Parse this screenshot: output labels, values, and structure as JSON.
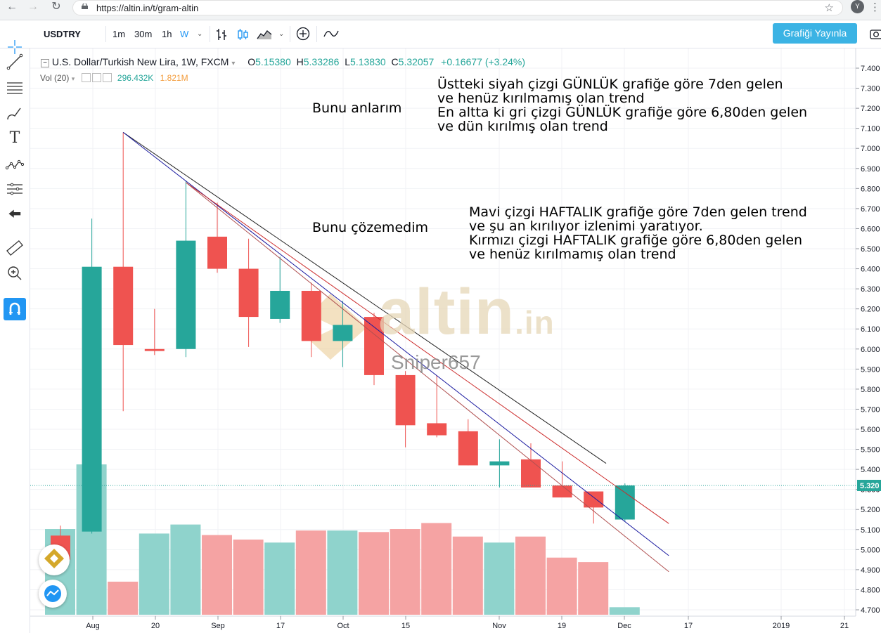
{
  "browser": {
    "url": "https://altin.in/t/gram-altin",
    "avatar_letter": "Y"
  },
  "toolbar": {
    "symbol": "USDTRY",
    "intervals": [
      "1m",
      "30m",
      "1h",
      "W"
    ],
    "active_interval": "W",
    "publish_label": "Grafiği Yayınla"
  },
  "legend": {
    "title": "U.S. Dollar/Turkish New Lira, 1W, FXCM",
    "open_label": "O",
    "open": "5.15380",
    "high_label": "H",
    "high": "5.33286",
    "low_label": "L",
    "low": "5.13830",
    "close_label": "C",
    "close": "5.32057",
    "change": "+0.16677 (+3.24%)"
  },
  "volume_legend": {
    "label": "Vol (20)",
    "value1": "296.432K",
    "value2": "1.821M"
  },
  "annotations": {
    "left_top": "Bunu anlarım",
    "left_mid": "Bunu çözemedim",
    "right_top": [
      "Üstteki siyah çizgi GÜNLÜK grafiğe göre 7den gelen",
      "ve henüz kırılmamış olan trend",
      "En altta ki gri çizgi GÜNLÜK grafiğe göre 6,80den gelen",
      "ve dün kırılmış olan trend"
    ],
    "right_mid": [
      "Mavi çizgi HAFTALIK grafiğe göre 7den gelen trend",
      "ve şu an kırılıyor izlenimi yaratıyor.",
      "Kırmızı çizgi HAFTALIK grafiğe göre 6,80den gelen",
      "ve henüz kırılmamış olan trend"
    ]
  },
  "watermark": {
    "brand": "altin",
    "tld": ".in",
    "author": "Sniper657"
  },
  "colors": {
    "up": "#26a69a",
    "down": "#ef5350",
    "accent": "#3bb3e4",
    "vol_up": "#8fd3cc",
    "vol_down": "#f5a3a3"
  },
  "chart_data": {
    "type": "candlestick",
    "price_axis": {
      "ticks": [
        "7.400",
        "7.300",
        "7.200",
        "7.100",
        "7.000",
        "6.900",
        "6.800",
        "6.700",
        "6.600",
        "6.500",
        "6.400",
        "6.300",
        "6.200",
        "6.100",
        "6.000",
        "5.900",
        "5.800",
        "5.700",
        "5.600",
        "5.500",
        "5.400",
        "5.300",
        "5.200",
        "5.100",
        "5.000",
        "4.900",
        "4.800",
        "4.700"
      ],
      "range": [
        4.67,
        7.46
      ],
      "last_price_label": "5.320"
    },
    "time_axis": {
      "labels": [
        "Aug",
        "20",
        "Sep",
        "17",
        "Oct",
        "15",
        "Nov",
        "19",
        "Dec",
        "17",
        "2019",
        "21"
      ]
    },
    "candles": [
      {
        "o": 5.07,
        "h": 5.12,
        "l": 4.94,
        "c": 4.95
      },
      {
        "o": 5.09,
        "h": 6.65,
        "l": 5.08,
        "c": 6.41
      },
      {
        "o": 6.41,
        "h": 7.08,
        "l": 5.69,
        "c": 6.02
      },
      {
        "o": 6.0,
        "h": 6.2,
        "l": 5.97,
        "c": 5.99
      },
      {
        "o": 6.0,
        "h": 6.84,
        "l": 5.96,
        "c": 6.54
      },
      {
        "o": 6.56,
        "h": 6.73,
        "l": 6.38,
        "c": 6.4
      },
      {
        "o": 6.4,
        "h": 6.55,
        "l": 6.01,
        "c": 6.16
      },
      {
        "o": 6.15,
        "h": 6.46,
        "l": 6.13,
        "c": 6.29
      },
      {
        "o": 6.29,
        "h": 6.33,
        "l": 5.96,
        "c": 6.04
      },
      {
        "o": 6.04,
        "h": 6.24,
        "l": 5.91,
        "c": 6.12
      },
      {
        "o": 6.16,
        "h": 6.18,
        "l": 5.82,
        "c": 5.87
      },
      {
        "o": 5.87,
        "h": 5.89,
        "l": 5.51,
        "c": 5.62
      },
      {
        "o": 5.63,
        "h": 5.87,
        "l": 5.56,
        "c": 5.57
      },
      {
        "o": 5.59,
        "h": 5.65,
        "l": 5.42,
        "c": 5.42
      },
      {
        "o": 5.42,
        "h": 5.55,
        "l": 5.31,
        "c": 5.44
      },
      {
        "o": 5.45,
        "h": 5.53,
        "l": 5.31,
        "c": 5.31
      },
      {
        "o": 5.32,
        "h": 5.44,
        "l": 5.27,
        "c": 5.26
      },
      {
        "o": 5.29,
        "h": 5.29,
        "l": 5.13,
        "c": 5.21
      },
      {
        "o": 5.15,
        "h": 5.33,
        "l": 5.14,
        "c": 5.32
      }
    ],
    "volume": [
      {
        "v": 0.57,
        "up": true
      },
      {
        "v": 1.0,
        "up": true
      },
      {
        "v": 0.22,
        "up": false
      },
      {
        "v": 0.54,
        "up": true
      },
      {
        "v": 0.6,
        "up": true
      },
      {
        "v": 0.53,
        "up": false
      },
      {
        "v": 0.5,
        "up": false
      },
      {
        "v": 0.48,
        "up": true
      },
      {
        "v": 0.56,
        "up": false
      },
      {
        "v": 0.56,
        "up": true
      },
      {
        "v": 0.55,
        "up": false
      },
      {
        "v": 0.57,
        "up": false
      },
      {
        "v": 0.61,
        "up": false
      },
      {
        "v": 0.52,
        "up": false
      },
      {
        "v": 0.48,
        "up": true
      },
      {
        "v": 0.52,
        "up": false
      },
      {
        "v": 0.38,
        "up": false
      },
      {
        "v": 0.35,
        "up": false
      },
      {
        "v": 0.05,
        "up": true
      }
    ],
    "trendlines": [
      {
        "name": "black",
        "color": "#222222",
        "from": {
          "bar": 2,
          "price": 7.08
        },
        "to": {
          "bar": 17.4,
          "price": 5.43
        }
      },
      {
        "name": "blue",
        "color": "#1a1aa0",
        "from": {
          "bar": 2,
          "price": 7.08
        },
        "to": {
          "bar": 19.4,
          "price": 4.97
        }
      },
      {
        "name": "red",
        "color": "#cc2a2a",
        "from": {
          "bar": 4,
          "price": 6.83
        },
        "to": {
          "bar": 19.4,
          "price": 5.13
        }
      },
      {
        "name": "red-thin",
        "color": "#b05050",
        "from": {
          "bar": 4,
          "price": 6.83
        },
        "to": {
          "bar": 19.4,
          "price": 4.89
        }
      }
    ]
  }
}
